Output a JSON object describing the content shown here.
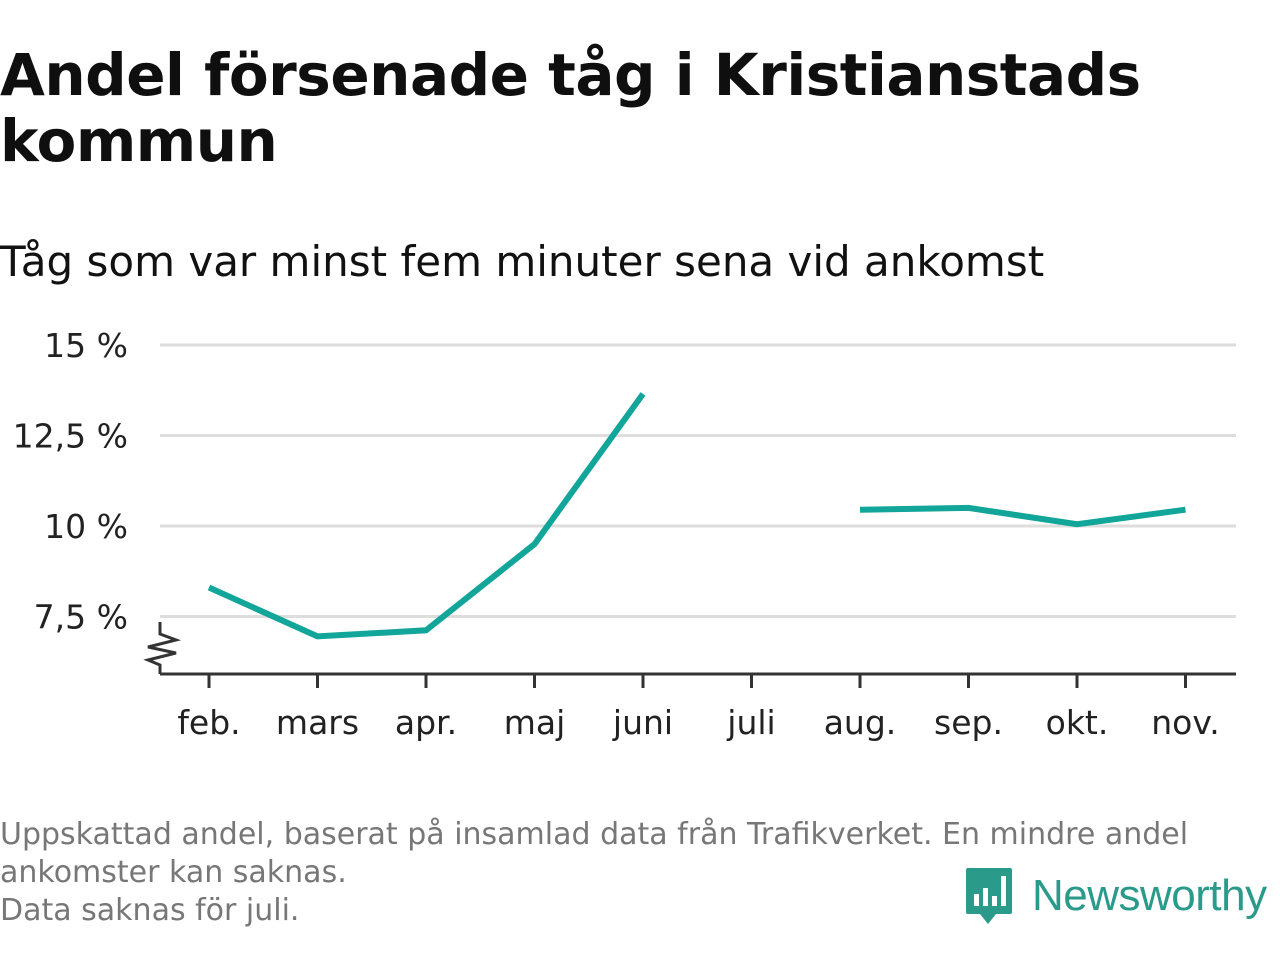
{
  "title": "Andel försenade tåg i Kristianstads kommun",
  "subtitle": "Tåg som var minst fem minuter sena vid ankomst",
  "footer": {
    "note": "Uppskattad andel, baserat på insamlad data från Trafikverket. En mindre andel ankomster kan saknas.",
    "missing": "Data saknas för juli."
  },
  "logo": {
    "text": "Newsworthy",
    "icon": "newsworthy-bar-chart-icon",
    "color": "#2a9a8a"
  },
  "colors": {
    "line": "#12a59a",
    "grid": "#dddddd",
    "axis": "#333333"
  },
  "chart_data": {
    "type": "line",
    "title": "Andel försenade tåg i Kristianstads kommun",
    "subtitle": "Tåg som var minst fem minuter sena vid ankomst",
    "categories": [
      "feb.",
      "mars",
      "apr.",
      "maj",
      "juni",
      "juli",
      "aug.",
      "sep.",
      "okt.",
      "nov."
    ],
    "series": [
      {
        "values": [
          8.3,
          6.95,
          7.12,
          9.5,
          13.65,
          null,
          10.45,
          10.5,
          10.05,
          10.45
        ]
      }
    ],
    "yticks": [
      7.5,
      10,
      12.5,
      15
    ],
    "ytick_labels": [
      "7,5 %",
      "10 %",
      "12,5 %",
      "15 %"
    ],
    "ylim": [
      6,
      15
    ],
    "axis_break": true,
    "grid": true,
    "legend": "none"
  }
}
